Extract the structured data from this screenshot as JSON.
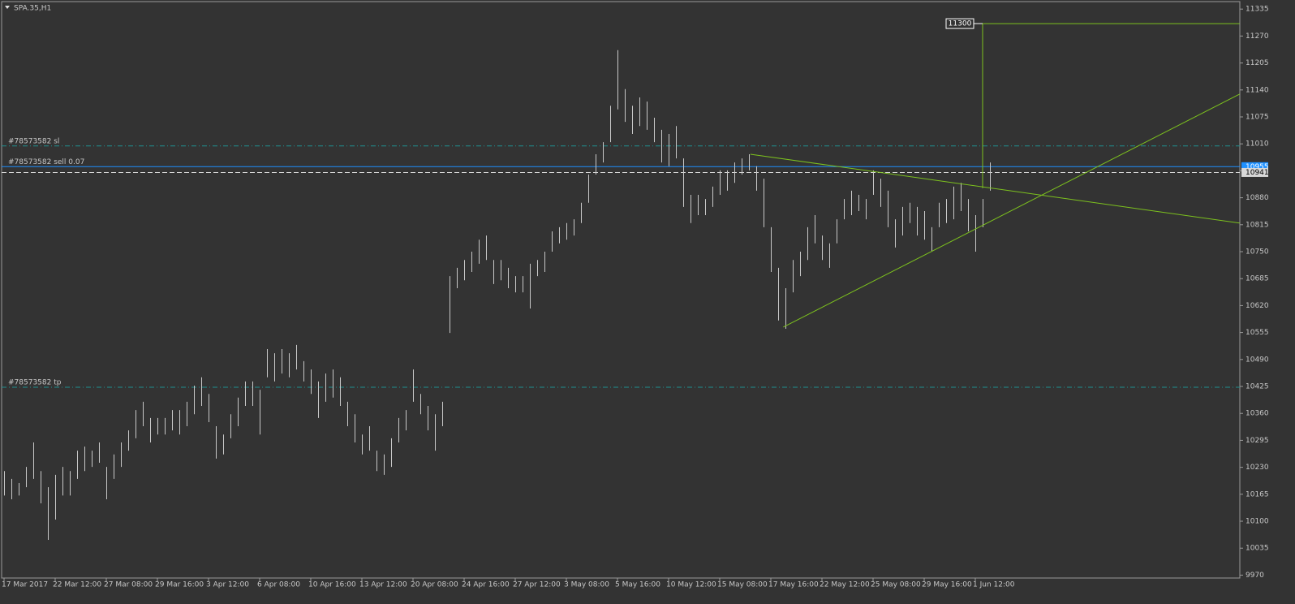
{
  "chart_data": {
    "type": "hilo",
    "title": "SPA.35,H1",
    "color": "#c8c8c8",
    "categories": [
      "17 Mar 2017",
      null,
      null,
      null,
      null,
      null,
      null,
      "22 Mar 12:00",
      null,
      null,
      null,
      null,
      null,
      null,
      "27 Mar 08:00",
      null,
      null,
      null,
      null,
      null,
      null,
      "29 Mar 16:00",
      null,
      null,
      null,
      null,
      null,
      null,
      "3 Apr 12:00",
      null,
      null,
      null,
      null,
      null,
      null,
      "6 Apr 08:00",
      null,
      null,
      null,
      null,
      null,
      null,
      "10 Apr 16:00",
      null,
      null,
      null,
      null,
      null,
      null,
      "13 Apr 12:00",
      null,
      null,
      null,
      null,
      null,
      null,
      "20 Apr 08:00",
      null,
      null,
      null,
      null,
      null,
      null,
      "24 Apr 16:00",
      null,
      null,
      null,
      null,
      null,
      null,
      "27 Apr 12:00",
      null,
      null,
      null,
      null,
      null,
      null,
      "3 May 08:00",
      null,
      null,
      null,
      null,
      null,
      null,
      "5 May 16:00",
      null,
      null,
      null,
      null,
      null,
      null,
      "10 May 12:00",
      null,
      null,
      null,
      null,
      null,
      null,
      "15 May 08:00",
      null,
      null,
      null,
      null,
      null,
      null,
      "17 May 16:00",
      null,
      null,
      null,
      null,
      null,
      null,
      "22 May 12:00",
      null,
      null,
      null,
      null,
      null,
      null,
      "25 May 08:00",
      null,
      null,
      null,
      null,
      null,
      null,
      "29 May 16:00",
      null,
      null,
      null,
      null,
      null,
      null,
      "1 Jun 12:00",
      null,
      null
    ],
    "high": [
      10221,
      10202,
      10192,
      10231,
      10290,
      10221,
      10182,
      10212,
      10231,
      10221,
      10270,
      10280,
      10270,
      10290,
      10231,
      10261,
      10290,
      10319,
      10368,
      10388,
      10349,
      10349,
      10349,
      10368,
      10368,
      10388,
      10427,
      10447,
      10407,
      10329,
      10309,
      10358,
      10398,
      10437,
      10437,
      10417,
      10515,
      10505,
      10515,
      10505,
      10525,
      10486,
      10466,
      10437,
      10456,
      10466,
      10447,
      10388,
      10358,
      10309,
      10329,
      10270,
      10261,
      10300,
      10349,
      10368,
      10466,
      10407,
      10378,
      10358,
      10388,
      10691,
      10711,
      10730,
      10750,
      10779,
      10789,
      10730,
      10730,
      10711,
      10691,
      10691,
      10721,
      10730,
      10750,
      10799,
      10809,
      10819,
      10828,
      10868,
      10936,
      10985,
      11014,
      11102,
      11236,
      11142,
      11102,
      11122,
      11112,
      11073,
      11044,
      11034,
      11053,
      10975,
      10887,
      10887,
      10877,
      10907,
      10946,
      10946,
      10965,
      10975,
      10985,
      10956,
      10926,
      10809,
      10711,
      10662,
      10730,
      10750,
      10809,
      10838,
      10789,
      10770,
      10828,
      10877,
      10897,
      10887,
      10877,
      10946,
      10926,
      10897,
      10828,
      10858,
      10868,
      10858,
      10848,
      10809,
      10868,
      10877,
      10907,
      10916,
      10877,
      10838,
      10877,
      10965
    ],
    "low": [
      10162,
      10153,
      10162,
      10182,
      10202,
      10143,
      10055,
      10104,
      10162,
      10162,
      10202,
      10221,
      10231,
      10241,
      10153,
      10202,
      10231,
      10270,
      10300,
      10329,
      10290,
      10309,
      10309,
      10319,
      10309,
      10329,
      10358,
      10378,
      10339,
      10251,
      10261,
      10300,
      10329,
      10378,
      10378,
      10309,
      10447,
      10437,
      10456,
      10447,
      10466,
      10437,
      10407,
      10349,
      10388,
      10398,
      10378,
      10329,
      10290,
      10261,
      10270,
      10221,
      10212,
      10231,
      10290,
      10319,
      10388,
      10358,
      10319,
      10270,
      10329,
      10554,
      10662,
      10681,
      10701,
      10721,
      10730,
      10672,
      10681,
      10662,
      10652,
      10652,
      10613,
      10691,
      10701,
      10750,
      10770,
      10779,
      10789,
      10819,
      10868,
      10936,
      10965,
      11014,
      11093,
      11063,
      11034,
      11053,
      11044,
      11014,
      10965,
      10956,
      10975,
      10858,
      10819,
      10838,
      10838,
      10858,
      10887,
      10897,
      10916,
      10936,
      10946,
      10897,
      10809,
      10701,
      10584,
      10564,
      10652,
      10691,
      10730,
      10770,
      10730,
      10711,
      10770,
      10828,
      10838,
      10848,
      10828,
      10887,
      10858,
      10809,
      10760,
      10789,
      10819,
      10789,
      10779,
      10750,
      10809,
      10819,
      10828,
      10848,
      10799,
      10750,
      10809,
      10897
    ],
    "ylim": [
      9963,
      11353
    ],
    "yticks": [
      11335,
      11270,
      11205,
      11140,
      11075,
      11010,
      10945,
      10880,
      10815,
      10750,
      10685,
      10620,
      10555,
      10490,
      10425,
      10360,
      10295,
      10230,
      10165,
      10100,
      10035,
      9970
    ],
    "levels": [
      {
        "label": "#78573582 sl",
        "value": 11005,
        "color": "#1f8f8f",
        "style": "dashdot",
        "price_tag": false
      },
      {
        "label": "#78573582 sell 0.07",
        "value": 10955,
        "color": "#1e90ff",
        "style": "solid",
        "price_tag": true
      },
      {
        "value": 10941,
        "color": "#d8d8d8",
        "style": "dashed",
        "price_tag": true
      },
      {
        "label": "#78573582 tp",
        "value": 10423,
        "color": "#1f8f8f",
        "style": "dashdot",
        "price_tag": false
      }
    ],
    "trendlines": [
      {
        "x": [
          102.2,
          169.2
        ],
        "y": [
          10985,
          10819
        ],
        "color": "#7dc21e"
      },
      {
        "x": [
          106.7,
          169.2
        ],
        "y": [
          10568,
          11130
        ],
        "color": "#7dc21e"
      }
    ],
    "target": {
      "value": 11300,
      "from": 10903,
      "x": [
        134,
        169.2
      ],
      "color": "#7dc21e"
    }
  }
}
